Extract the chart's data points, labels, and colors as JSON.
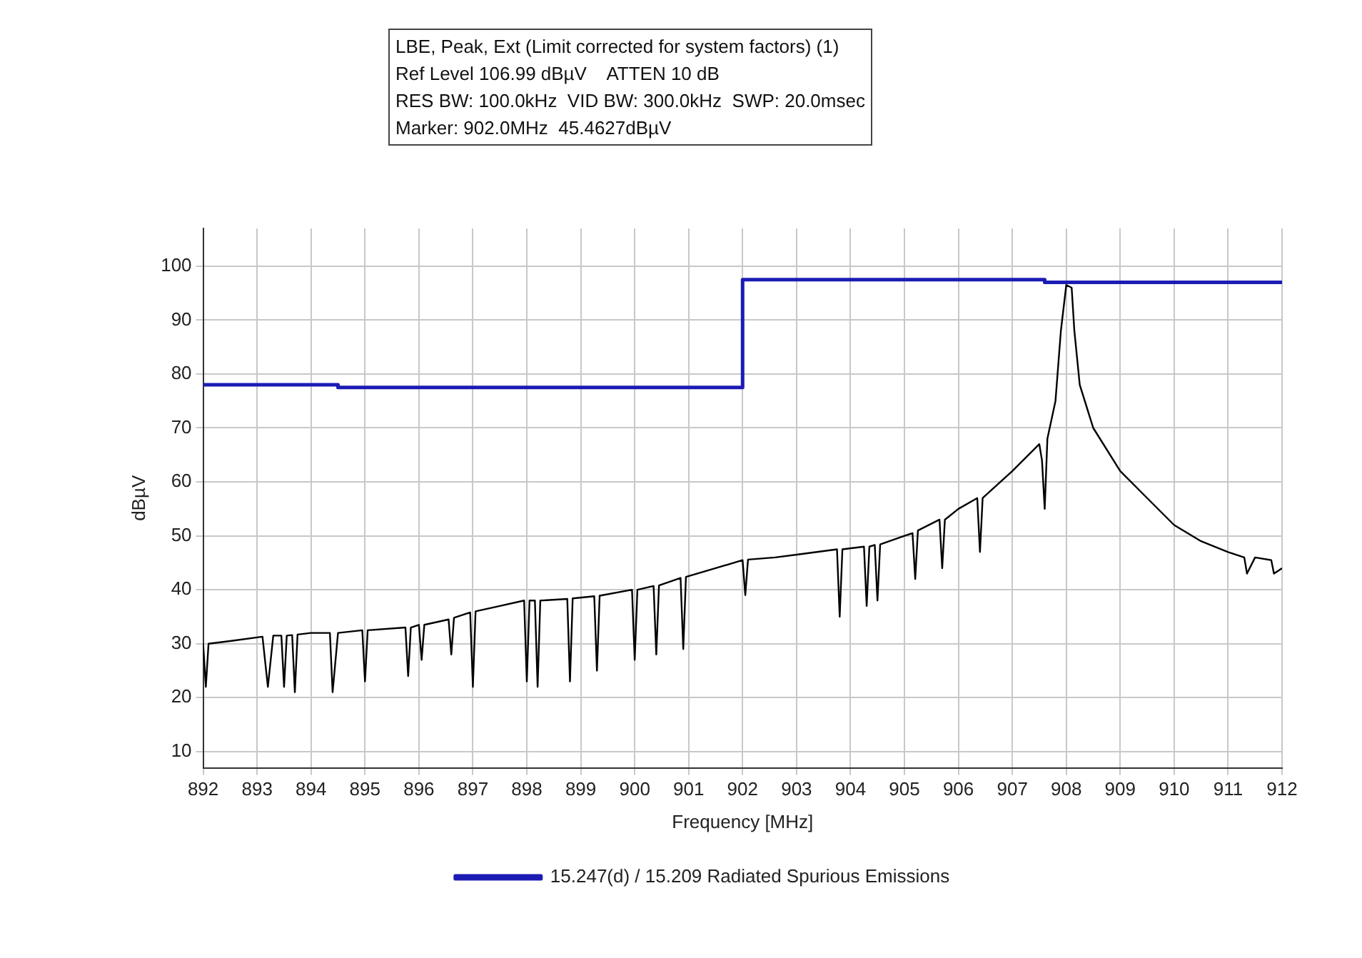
{
  "chart_data": {
    "type": "line",
    "annotations": [
      "LBE, Peak, Ext (Limit corrected for system factors) (1)",
      "Ref Level 106.99 dBµV    ATTEN 10 dB",
      "RES BW: 100.0kHz  VID BW: 300.0kHz  SWP: 20.0msec",
      "Marker: 902.0MHz  45.4627dBµV"
    ],
    "xlabel": "Frequency [MHz]",
    "ylabel": "dBµV",
    "xlim": [
      892,
      912
    ],
    "xticks": [
      892,
      893,
      894,
      895,
      896,
      897,
      898,
      899,
      900,
      901,
      902,
      903,
      904,
      905,
      906,
      907,
      908,
      909,
      910,
      911,
      912
    ],
    "ylim": [
      6.99,
      106.99
    ],
    "yticks": [
      10,
      20,
      30,
      40,
      50,
      60,
      70,
      80,
      90,
      100
    ],
    "grid": true,
    "legend": "bottom",
    "marker": "none",
    "line_style": "solid",
    "series": [
      {
        "type": "line",
        "color": "#000000",
        "x": [
          892,
          892.05,
          892.1,
          892.5,
          893.1,
          893.2,
          893.3,
          893.45,
          893.5,
          893.55,
          893.65,
          893.7,
          893.75,
          894,
          894.35,
          894.4,
          894.5,
          894.95,
          895,
          895.05,
          895.75,
          895.8,
          895.85,
          896,
          896.05,
          896.1,
          896.55,
          896.6,
          896.65,
          896.95,
          897,
          897.05,
          897.5,
          897.95,
          898,
          898.05,
          898.15,
          898.2,
          898.25,
          898.75,
          898.8,
          898.85,
          899.25,
          899.3,
          899.35,
          899.95,
          900,
          900.05,
          900.35,
          900.4,
          900.45,
          900.85,
          900.9,
          900.95,
          901.5,
          902,
          902.05,
          902.1,
          902.6,
          903,
          903.75,
          903.8,
          903.85,
          904.25,
          904.3,
          904.35,
          904.45,
          904.5,
          904.55,
          905,
          905.15,
          905.2,
          905.25,
          905.65,
          905.7,
          905.75,
          906,
          906.35,
          906.4,
          906.45,
          907,
          907.5,
          907.55,
          907.6,
          907.65,
          907.8,
          907.9,
          908,
          908.1,
          908.15,
          908.25,
          908.5,
          909,
          909.5,
          910,
          910.5,
          911,
          911.3,
          911.35,
          911.5,
          911.8,
          911.85,
          912
        ],
        "values": [
          30,
          22,
          30,
          30.5,
          31.3,
          22,
          31.5,
          31.5,
          22,
          31.5,
          31.6,
          21,
          31.7,
          32,
          32,
          21,
          32,
          32.5,
          23,
          32.5,
          33,
          24,
          33,
          33.5,
          27,
          33.5,
          34.5,
          28,
          34.8,
          35.8,
          22,
          36,
          37,
          38,
          23,
          38,
          38,
          22,
          38,
          38.3,
          23,
          38.4,
          38.8,
          25,
          38.9,
          40,
          27,
          40,
          40.7,
          28,
          40.8,
          42.2,
          29,
          42.4,
          44,
          45.5,
          39,
          45.6,
          46,
          46.5,
          47.5,
          35,
          47.5,
          48,
          37,
          48,
          48.3,
          38,
          48.4,
          50,
          50.5,
          42,
          51,
          53,
          44,
          53,
          55,
          57,
          47,
          57,
          62,
          67,
          64,
          55,
          68,
          75,
          88,
          96.5,
          96,
          88,
          78,
          70,
          62,
          57,
          52,
          49,
          47,
          46,
          43,
          46,
          45.5,
          43,
          44
        ]
      },
      {
        "type": "step",
        "name": "15.247(d) / 15.209 Radiated Spurious Emissions",
        "color": "#1c1cb4",
        "x": [
          892,
          894.5,
          902,
          907.6,
          912
        ],
        "values": [
          78,
          77.5,
          97.5,
          97,
          97
        ]
      }
    ]
  }
}
